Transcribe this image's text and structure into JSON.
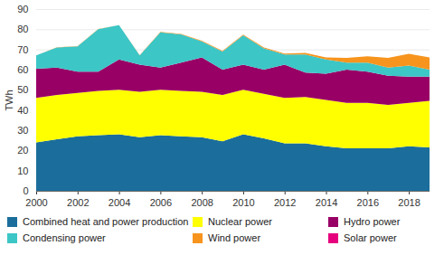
{
  "chart_data": {
    "type": "area",
    "stacked": true,
    "grid": true,
    "legend": "bottom",
    "y_label": "TWh",
    "x": [
      2000,
      2001,
      2002,
      2003,
      2004,
      2005,
      2006,
      2007,
      2008,
      2009,
      2010,
      2011,
      2012,
      2013,
      2014,
      2015,
      2016,
      2017,
      2018,
      2019
    ],
    "xlim": [
      2000,
      2019
    ],
    "xticks": [
      2000,
      2002,
      2004,
      2006,
      2008,
      2010,
      2012,
      2014,
      2016,
      2018
    ],
    "ylim": [
      0,
      90
    ],
    "yticks": [
      0,
      10,
      20,
      30,
      40,
      50,
      60,
      70,
      80,
      90
    ],
    "series": [
      {
        "name": "Combined heat and power production",
        "color": "#1b6e9c",
        "values": [
          24,
          25.5,
          27,
          27.5,
          28,
          26.5,
          27.5,
          27,
          26.5,
          24.5,
          28,
          26,
          23.5,
          23.5,
          22,
          21,
          21,
          21,
          22,
          21.5
        ]
      },
      {
        "name": "Nuclear power",
        "color": "#ffff00",
        "values": [
          22,
          22,
          21.5,
          22,
          22,
          22.5,
          22.5,
          22.5,
          22.5,
          23,
          22,
          22,
          22.5,
          23,
          23,
          22.5,
          22.5,
          21.5,
          21.5,
          23
        ]
      },
      {
        "name": "Hydro power",
        "color": "#990066",
        "values": [
          14.5,
          13.5,
          10.5,
          9.5,
          15,
          13.5,
          11,
          14,
          17,
          12.5,
          12.5,
          12,
          16.5,
          12,
          13,
          16.5,
          15.5,
          14.5,
          13,
          12
        ]
      },
      {
        "name": "Condensing power",
        "color": "#3cc6c6",
        "values": [
          6.5,
          10,
          12.5,
          21,
          17,
          4.5,
          17.5,
          14,
          8,
          9,
          14.5,
          10.5,
          5,
          9,
          7,
          3.5,
          4.5,
          4,
          5.5,
          3.5
        ]
      },
      {
        "name": "Wind power",
        "color": "#f7941d",
        "values": [
          0.1,
          0.1,
          0.1,
          0.1,
          0.1,
          0.2,
          0.2,
          0.2,
          0.3,
          0.3,
          0.3,
          0.5,
          0.5,
          0.8,
          1.1,
          2.3,
          3.1,
          4.8,
          5.8,
          6
        ]
      },
      {
        "name": "Solar power",
        "color": "#e6007e",
        "values": [
          0,
          0,
          0,
          0,
          0,
          0,
          0,
          0,
          0,
          0,
          0,
          0,
          0,
          0,
          0,
          0,
          0,
          0.02,
          0.05,
          0.1
        ]
      }
    ]
  }
}
